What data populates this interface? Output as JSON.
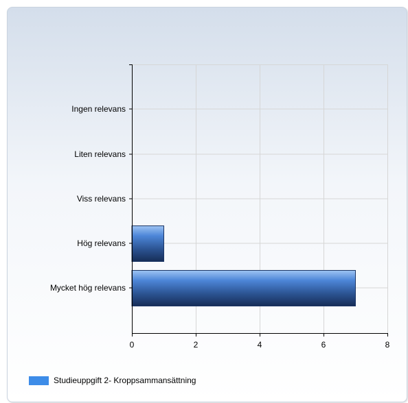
{
  "chart_data": {
    "type": "bar",
    "orientation": "horizontal",
    "categories": [
      "Ingen relevans",
      "Liten relevans",
      "Viss relevans",
      "Hög relevans",
      "Mycket hög relevans"
    ],
    "series": [
      {
        "name": "Studieuppgift 2- Kroppsammansättning",
        "values": [
          0,
          0,
          0,
          1,
          7
        ],
        "color": "#3d8ce8"
      }
    ],
    "xlim": [
      0,
      8
    ],
    "xticks": [
      0,
      2,
      4,
      6,
      8
    ],
    "grid": true,
    "legend_position": "bottom-left"
  }
}
